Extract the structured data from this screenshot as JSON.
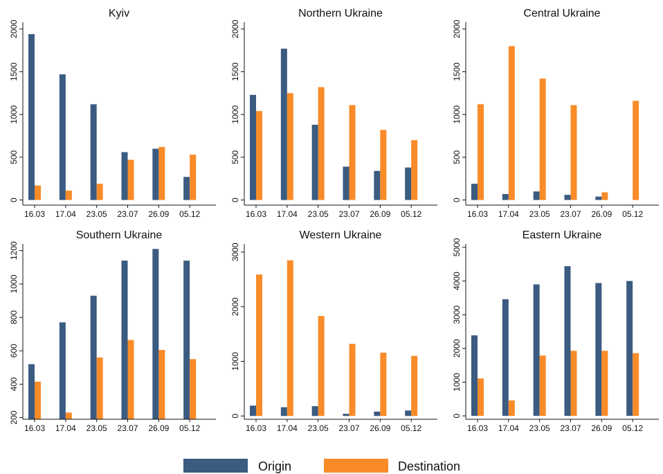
{
  "chart_data": [
    {
      "type": "bar",
      "title": "Kyiv",
      "categories": [
        "16.03",
        "17.04",
        "23.05",
        "23.07",
        "26.09",
        "05.12"
      ],
      "series": [
        {
          "name": "Origin",
          "color": "#3b5b80",
          "values": [
            1940,
            1470,
            1120,
            560,
            600,
            270
          ]
        },
        {
          "name": "Destination",
          "color": "#f98b28",
          "values": [
            170,
            110,
            190,
            470,
            620,
            530
          ]
        }
      ],
      "ylim": [
        -60,
        2080
      ],
      "yticks": [
        0,
        500,
        1000,
        1500,
        2000
      ]
    },
    {
      "type": "bar",
      "title": "Northern Ukraine",
      "categories": [
        "16.03",
        "17.04",
        "23.05",
        "23.07",
        "26.09",
        "05.12"
      ],
      "series": [
        {
          "name": "Origin",
          "color": "#3b5b80",
          "values": [
            1230,
            1770,
            880,
            390,
            340,
            380
          ]
        },
        {
          "name": "Destination",
          "color": "#f98b28",
          "values": [
            1040,
            1250,
            1320,
            1110,
            820,
            700
          ]
        }
      ],
      "ylim": [
        -60,
        2080
      ],
      "yticks": [
        0,
        500,
        1000,
        1500,
        2000
      ]
    },
    {
      "type": "bar",
      "title": "Central Ukraine",
      "categories": [
        "16.03",
        "17.04",
        "23.05",
        "23.07",
        "26.09",
        "05.12"
      ],
      "series": [
        {
          "name": "Origin",
          "color": "#3b5b80",
          "values": [
            190,
            70,
            100,
            60,
            40,
            0
          ]
        },
        {
          "name": "Destination",
          "color": "#f98b28",
          "values": [
            1120,
            1800,
            1420,
            1110,
            90,
            1160
          ]
        }
      ],
      "ylim": [
        -60,
        2080
      ],
      "yticks": [
        0,
        500,
        1000,
        1500,
        2000
      ]
    },
    {
      "type": "bar",
      "title": "Southern Ukraine",
      "categories": [
        "16.03",
        "17.04",
        "23.05",
        "23.07",
        "26.09",
        "05.12"
      ],
      "series": [
        {
          "name": "Origin",
          "color": "#3b5b80",
          "values": [
            520,
            770,
            930,
            1140,
            1210,
            1140
          ]
        },
        {
          "name": "Destination",
          "color": "#f98b28",
          "values": [
            415,
            230,
            560,
            665,
            605,
            550
          ]
        }
      ],
      "ylim": [
        190,
        1240
      ],
      "yticks": [
        200,
        400,
        600,
        800,
        1000,
        1200
      ]
    },
    {
      "type": "bar",
      "title": "Western Ukraine",
      "categories": [
        "16.03",
        "17.04",
        "23.05",
        "23.07",
        "26.09",
        "05.12"
      ],
      "series": [
        {
          "name": "Origin",
          "color": "#3b5b80",
          "values": [
            190,
            160,
            180,
            40,
            80,
            100
          ]
        },
        {
          "name": "Destination",
          "color": "#f98b28",
          "values": [
            2590,
            2850,
            1830,
            1320,
            1160,
            1100
          ]
        }
      ],
      "ylim": [
        -60,
        3150
      ],
      "yticks": [
        0,
        1000,
        2000,
        3000
      ]
    },
    {
      "type": "bar",
      "title": "Eastern Ukraine",
      "categories": [
        "16.03",
        "17.04",
        "23.05",
        "23.07",
        "26.09",
        "05.12"
      ],
      "series": [
        {
          "name": "Origin",
          "color": "#3b5b80",
          "values": [
            2390,
            3460,
            3900,
            4440,
            3940,
            4000
          ]
        },
        {
          "name": "Destination",
          "color": "#f98b28",
          "values": [
            1110,
            460,
            1790,
            1930,
            1930,
            1860
          ]
        }
      ],
      "ylim": [
        -100,
        5100
      ],
      "yticks": [
        0,
        1000,
        2000,
        3000,
        4000,
        5000
      ]
    }
  ]
}
